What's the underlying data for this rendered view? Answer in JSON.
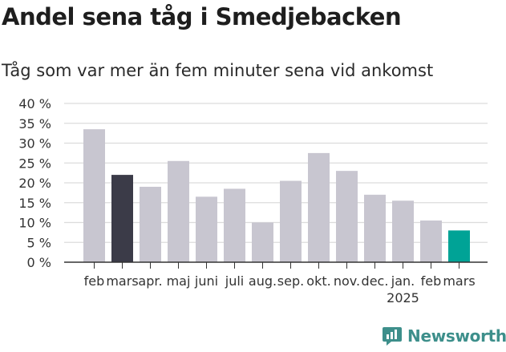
{
  "title": "Andel sena tåg i Smedjebacken",
  "subtitle": "Tåg som var mer än fem minuter sena vid ankomst",
  "brand": {
    "name": "Newsworthy"
  },
  "colors": {
    "bar_default": "#c8c6d0",
    "bar_highlight_prev": "#3b3b48",
    "bar_highlight_current": "#00a396",
    "grid": "#dcdcdc",
    "axis": "#333333",
    "brand": "#3d8f8b"
  },
  "chart_data": {
    "type": "bar",
    "categories": [
      "feb",
      "mars",
      "apr.",
      "maj",
      "juni",
      "juli",
      "aug.",
      "sep.",
      "okt.",
      "nov.",
      "dec.",
      "jan.",
      "feb",
      "mars"
    ],
    "year_label": "2025",
    "values": [
      33.5,
      22,
      19,
      25.5,
      16.5,
      18.5,
      10,
      20.5,
      27.5,
      23,
      17,
      15.5,
      10.5,
      8
    ],
    "highlight": {
      "1": "bar_highlight_prev",
      "13": "bar_highlight_current"
    },
    "ylim": [
      0,
      40
    ],
    "yticks": [
      0,
      5,
      10,
      15,
      20,
      25,
      30,
      35,
      40
    ],
    "ytick_labels": [
      "0 %",
      "5 %",
      "10 %",
      "15 %",
      "20 %",
      "25 %",
      "30 %",
      "35 %",
      "40 %"
    ],
    "xlabel": "",
    "ylabel": "",
    "grid": true
  }
}
